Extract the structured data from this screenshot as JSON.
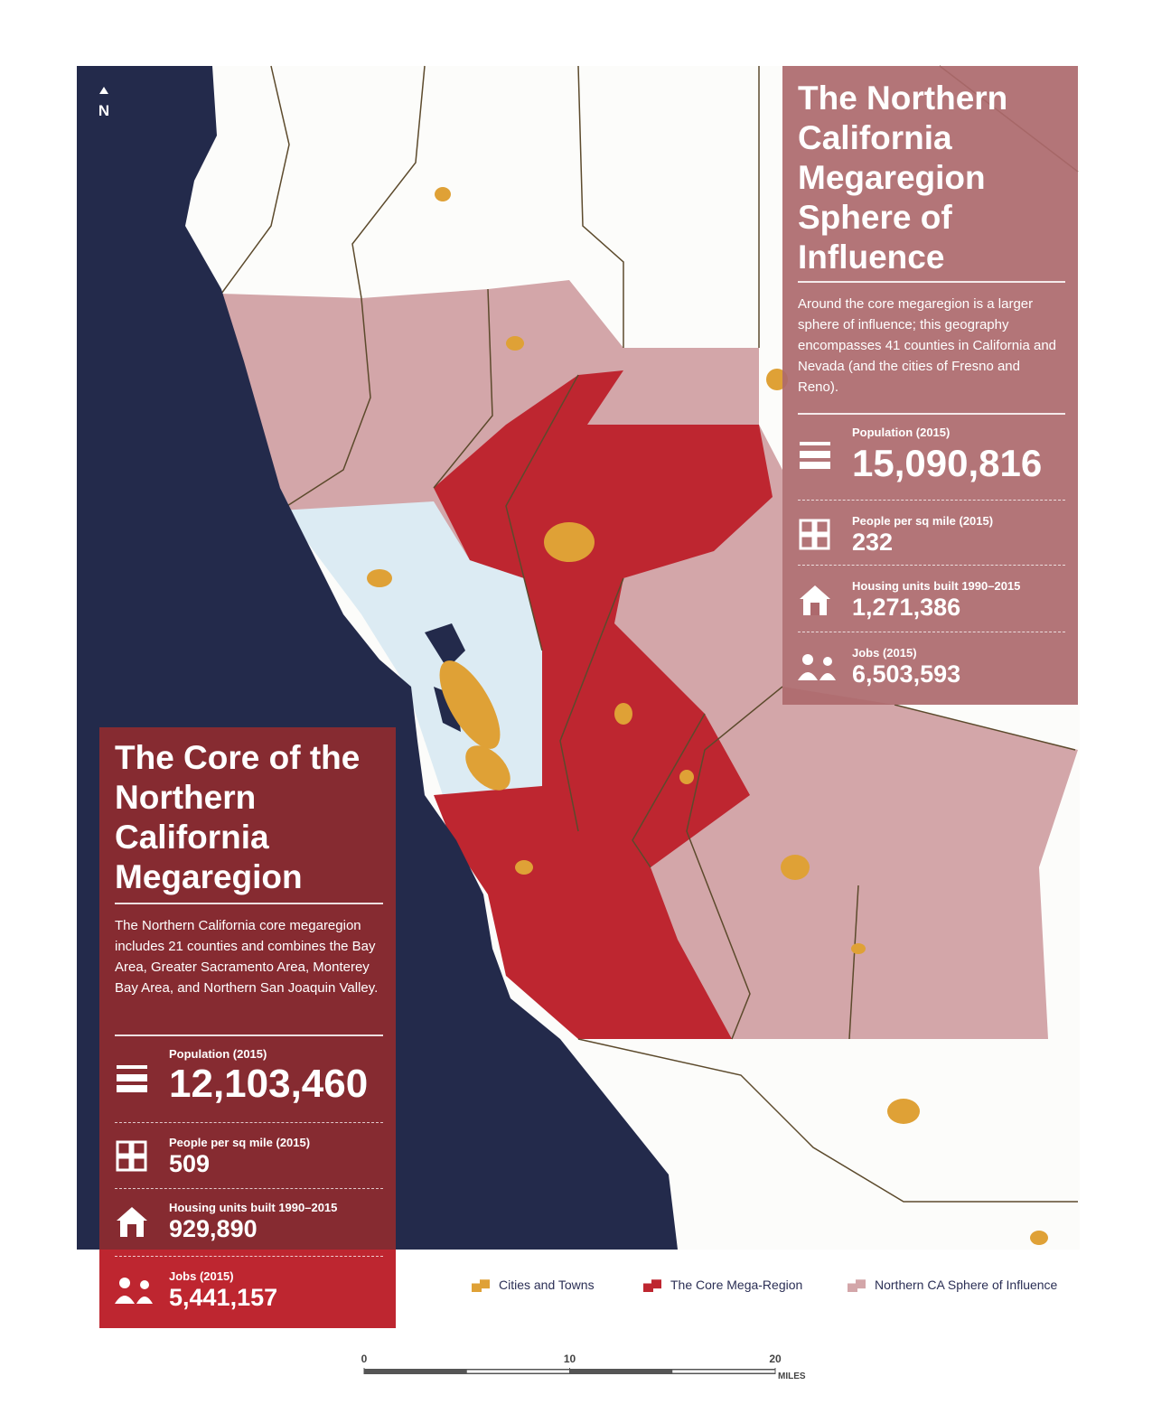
{
  "north": "N",
  "sphere_panel": {
    "title": "The Northern California Megaregion Sphere of Influence",
    "description": "Around the core megaregion is a larger sphere of influence; this geography encompasses 41 counties in California and Nevada (and the cities of Fresno and Reno).",
    "stats": [
      {
        "label": "Population (2015)",
        "value": "15,090,816"
      },
      {
        "label": "People per sq mile (2015)",
        "value": "232"
      },
      {
        "label": "Housing units built 1990–2015",
        "value": "1,271,386"
      },
      {
        "label": "Jobs (2015)",
        "value": "6,503,593"
      }
    ]
  },
  "core_panel": {
    "title": "The Core of the Northern California Megaregion",
    "description": "The Northern California core megaregion includes 21 counties and combines the Bay Area, Greater Sacramento Area, Monterey Bay Area, and Northern San Joaquin Valley.",
    "stats": [
      {
        "label": "Population (2015)",
        "value": "12,103,460"
      },
      {
        "label": "People per sq mile (2015)",
        "value": "509"
      },
      {
        "label": "Housing units built 1990–2015",
        "value": "929,890"
      },
      {
        "label": "Jobs (2015)",
        "value": "5,441,157"
      }
    ]
  },
  "legend": [
    {
      "label": "Cities and Towns",
      "color": "#dfa136"
    },
    {
      "label": "The Core Mega-Region",
      "color": "#be2630"
    },
    {
      "label": "Northern CA Sphere of Influence",
      "color": "#d3a6a9"
    }
  ],
  "scale": {
    "ticks": [
      0,
      10,
      20
    ],
    "unit": "MILES"
  }
}
